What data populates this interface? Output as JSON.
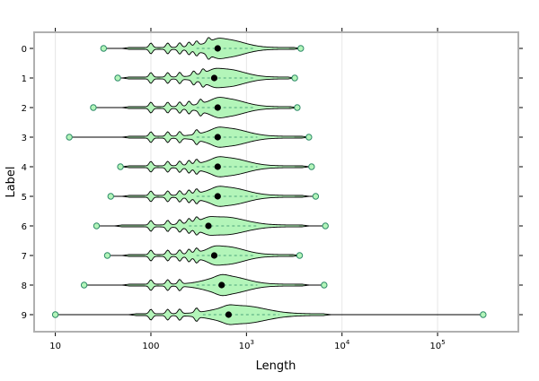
{
  "chart_data": {
    "type": "violin",
    "title": "",
    "xlabel": "Length",
    "ylabel": "Label",
    "x_scale": "log",
    "xlim": [
      6,
      700000
    ],
    "x_ticks": [
      {
        "value": 10,
        "label": "10"
      },
      {
        "value": 100,
        "label": "100"
      },
      {
        "value": 1000,
        "label": "10",
        "exp": "3"
      },
      {
        "value": 10000,
        "label": "10",
        "exp": "4"
      },
      {
        "value": 100000,
        "label": "10",
        "exp": "5"
      }
    ],
    "categories": [
      "0",
      "1",
      "2",
      "3",
      "4",
      "5",
      "6",
      "7",
      "8",
      "9"
    ],
    "grid": true,
    "colors": {
      "violin_fill": "#b3f5b9",
      "violin_stroke": "#000000",
      "outlier_marker": "#2e8b68",
      "mean_marker": "#000000",
      "frame": "#b0b0b0"
    },
    "series": [
      {
        "label": "0",
        "min": 32,
        "max": 3700,
        "mean": 500,
        "body": [
          300,
          1200
        ],
        "peaks": [
          100,
          150,
          200,
          250,
          300,
          400
        ]
      },
      {
        "label": "1",
        "min": 45,
        "max": 3200,
        "mean": 460,
        "body": [
          300,
          1200
        ],
        "peaks": [
          100,
          150,
          200,
          280,
          350
        ]
      },
      {
        "label": "2",
        "min": 25,
        "max": 3400,
        "mean": 500,
        "body": [
          300,
          1200
        ],
        "peaks": [
          100,
          150,
          200,
          250,
          330
        ]
      },
      {
        "label": "3",
        "min": 14,
        "max": 4500,
        "mean": 500,
        "body": [
          300,
          1300
        ],
        "peaks": [
          100,
          150,
          200,
          300
        ]
      },
      {
        "label": "4",
        "min": 48,
        "max": 4800,
        "mean": 500,
        "body": [
          300,
          1300
        ],
        "peaks": [
          100,
          150,
          200,
          250,
          300
        ]
      },
      {
        "label": "5",
        "min": 38,
        "max": 5300,
        "mean": 500,
        "body": [
          300,
          1300
        ],
        "peaks": [
          100,
          150,
          200,
          250,
          300
        ]
      },
      {
        "label": "6",
        "min": 27,
        "max": 6700,
        "mean": 400,
        "body": [
          250,
          1300
        ],
        "peaks": [
          100,
          150,
          200,
          250,
          300
        ]
      },
      {
        "label": "7",
        "min": 35,
        "max": 3600,
        "mean": 460,
        "body": [
          300,
          1200
        ],
        "peaks": [
          100,
          150,
          200,
          250,
          300
        ]
      },
      {
        "label": "8",
        "min": 20,
        "max": 6500,
        "mean": 550,
        "body": [
          300,
          1300
        ],
        "peaks": [
          100,
          150,
          200
        ]
      },
      {
        "label": "9",
        "min": 10,
        "max": 300000,
        "mean": 650,
        "body": [
          350,
          2200
        ],
        "peaks": [
          100,
          150,
          200,
          300
        ]
      }
    ]
  }
}
